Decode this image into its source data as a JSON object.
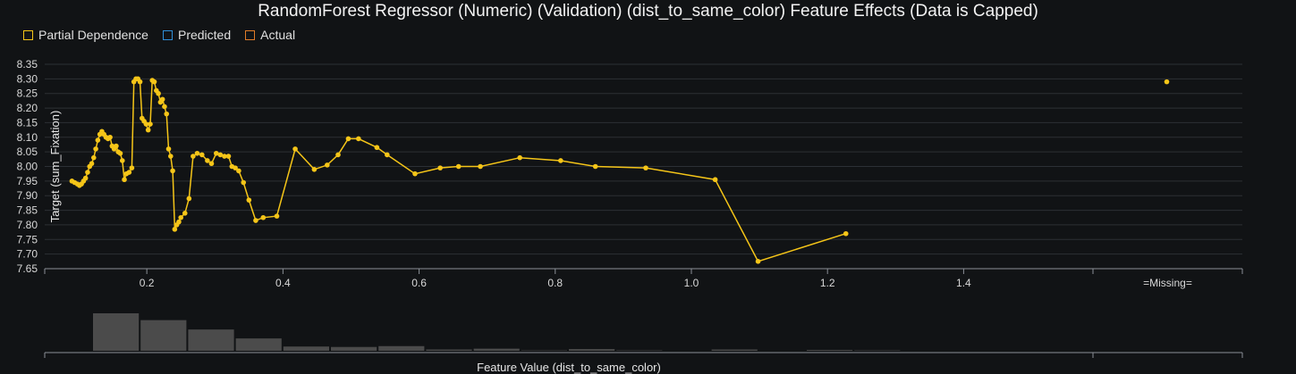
{
  "chart_data": {
    "type": "line",
    "title": "RandomForest Regressor (Numeric) (Validation) (dist_to_same_color) Feature Effects (Data is Capped)",
    "xlabel": "Feature Value (dist_to_same_color)",
    "ylabel": "Target (sum_Fixation)",
    "ylim": [
      7.65,
      8.35
    ],
    "xlim": [
      0.05,
      1.59
    ],
    "x_ticks": [
      "0.2",
      "0.4",
      "0.6",
      "0.8",
      "1.0",
      "1.2",
      "1.4"
    ],
    "y_ticks": [
      "8.35",
      "8.30",
      "8.25",
      "8.20",
      "8.15",
      "8.10",
      "8.05",
      "8.00",
      "7.95",
      "7.90",
      "7.85",
      "7.80",
      "7.75",
      "7.70",
      "7.65"
    ],
    "missing_label": "=Missing=",
    "legend": [
      {
        "name": "Partial Dependence",
        "color": "#f5c518"
      },
      {
        "name": "Predicted",
        "color": "#2f8fd8"
      },
      {
        "name": "Actual",
        "color": "#e07b28"
      }
    ],
    "legend_position": "top-left",
    "grid": true,
    "series": [
      {
        "name": "Partial Dependence",
        "color": "#f5c518",
        "x": [
          0.09,
          0.094,
          0.098,
          0.101,
          0.104,
          0.107,
          0.11,
          0.113,
          0.116,
          0.119,
          0.122,
          0.125,
          0.128,
          0.131,
          0.134,
          0.137,
          0.14,
          0.143,
          0.146,
          0.149,
          0.152,
          0.155,
          0.158,
          0.161,
          0.164,
          0.167,
          0.17,
          0.174,
          0.178,
          0.181,
          0.184,
          0.187,
          0.19,
          0.193,
          0.196,
          0.199,
          0.202,
          0.205,
          0.208,
          0.211,
          0.214,
          0.217,
          0.22,
          0.223,
          0.226,
          0.229,
          0.232,
          0.235,
          0.238,
          0.241,
          0.244,
          0.247,
          0.25,
          0.256,
          0.262,
          0.268,
          0.274,
          0.281,
          0.289,
          0.295,
          0.302,
          0.308,
          0.314,
          0.32,
          0.325,
          0.33,
          0.335,
          0.342,
          0.35,
          0.36,
          0.371,
          0.391,
          0.418,
          0.446,
          0.465,
          0.481,
          0.496,
          0.511,
          0.538,
          0.553,
          0.594,
          0.631,
          0.658,
          0.69,
          0.748,
          0.808,
          0.859,
          0.933,
          1.035,
          1.098,
          1.227
        ],
        "y": [
          7.95,
          7.945,
          7.94,
          7.935,
          7.94,
          7.95,
          7.96,
          7.98,
          8.0,
          8.01,
          8.03,
          8.06,
          8.09,
          8.11,
          8.12,
          8.11,
          8.1,
          8.095,
          8.1,
          8.07,
          8.06,
          8.07,
          8.05,
          8.045,
          8.02,
          7.955,
          7.975,
          7.98,
          7.995,
          8.29,
          8.3,
          8.3,
          8.29,
          8.165,
          8.155,
          8.145,
          8.125,
          8.145,
          8.295,
          8.29,
          8.26,
          8.25,
          8.22,
          8.23,
          8.205,
          8.18,
          8.06,
          8.035,
          7.985,
          7.785,
          7.8,
          7.81,
          7.825,
          7.84,
          7.89,
          8.035,
          8.045,
          8.04,
          8.02,
          8.01,
          8.045,
          8.04,
          8.035,
          8.035,
          8.0,
          7.995,
          7.985,
          7.945,
          7.885,
          7.815,
          7.825,
          7.83,
          8.06,
          7.99,
          8.005,
          8.04,
          8.095,
          8.095,
          8.065,
          8.04,
          7.975,
          7.995,
          8.0,
          8.0,
          8.03,
          8.02,
          8.0,
          7.995,
          7.955,
          7.675,
          7.77
        ]
      }
    ],
    "missing_point": {
      "series": "Partial Dependence",
      "y": 8.29
    },
    "histogram": {
      "values": [
        88,
        72,
        50,
        29,
        10,
        9,
        11,
        3,
        5,
        1,
        4,
        1,
        0,
        3,
        0,
        2,
        1
      ],
      "missing_value": 0
    }
  }
}
